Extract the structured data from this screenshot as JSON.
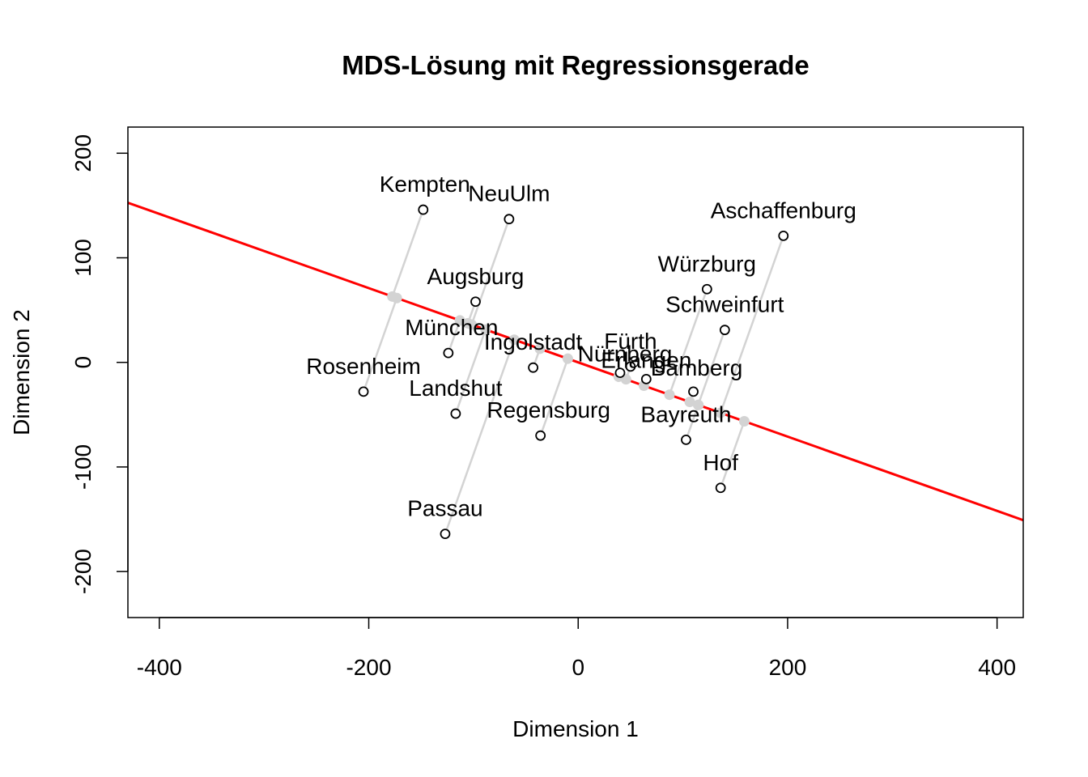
{
  "chart_data": {
    "type": "scatter",
    "title": "MDS-Lösung mit Regressionsgerade",
    "xlabel": "Dimension 1",
    "ylabel": "Dimension 2",
    "xlim": [
      -430,
      425
    ],
    "ylim": [
      -244,
      225
    ],
    "xticks": [
      -400,
      -200,
      0,
      200,
      400
    ],
    "yticks": [
      -200,
      -100,
      0,
      100,
      200
    ],
    "regression_line": {
      "intercept": 0,
      "slope": -0.355,
      "color": "#ff0000"
    },
    "projection_color": "#d3d3d3",
    "point_color": "#000000",
    "points": [
      {
        "label": "Kempten",
        "x": -148,
        "y": 146
      },
      {
        "label": "NeuUlm",
        "x": -66,
        "y": 137
      },
      {
        "label": "Aschaffenburg",
        "x": 196,
        "y": 121
      },
      {
        "label": "Würzburg",
        "x": 123,
        "y": 70
      },
      {
        "label": "Augsburg",
        "x": -98,
        "y": 58
      },
      {
        "label": "Schweinfurt",
        "x": 140,
        "y": 31
      },
      {
        "label": "München",
        "x": -124,
        "y": 9
      },
      {
        "label": "Ingolstadt",
        "x": -43,
        "y": -5
      },
      {
        "label": "Fürth",
        "x": 50,
        "y": -4
      },
      {
        "label": "Nürnberg",
        "x": 40,
        "y": -10
      },
      {
        "label": "Erlangen",
        "x": 65,
        "y": -16
      },
      {
        "label": "Bamberg",
        "x": 110,
        "y": -28
      },
      {
        "label": "Rosenheim",
        "x": -205,
        "y": -28
      },
      {
        "label": "Landshut",
        "x": -117,
        "y": -49
      },
      {
        "label": "Regensburg",
        "x": -36,
        "y": -70
      },
      {
        "label": "Bayreuth",
        "x": 103,
        "y": -74
      },
      {
        "label": "Hof",
        "x": 136,
        "y": -120
      },
      {
        "label": "Passau",
        "x": -127,
        "y": -164
      }
    ]
  }
}
